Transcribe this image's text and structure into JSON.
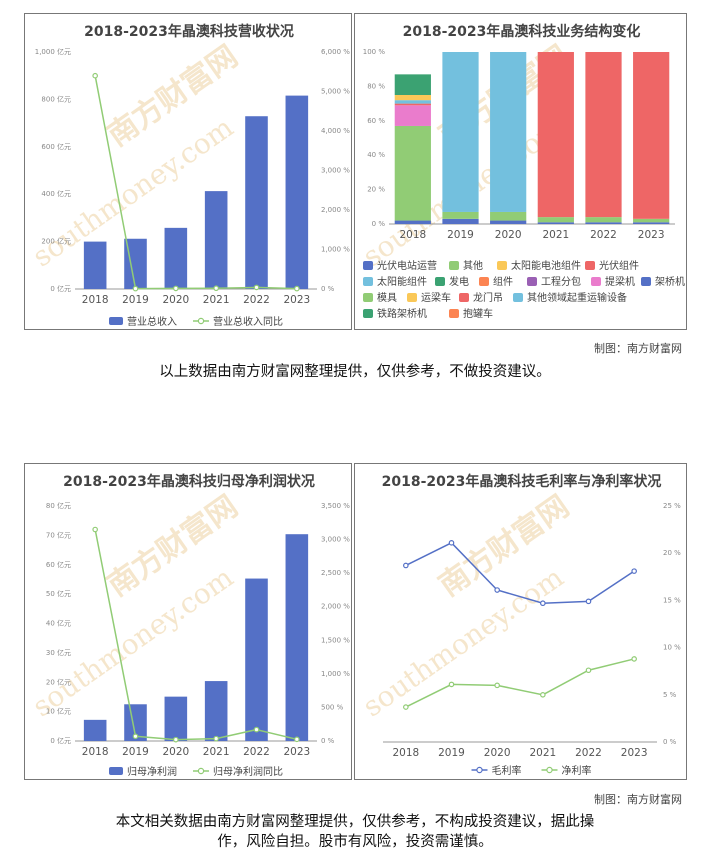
{
  "watermark": {
    "cn": "南方财富网",
    "en": "southmoney.com",
    "color": "#f5e6cc"
  },
  "credits": {
    "top": "制图：南方财富网",
    "bottom": "制图：南方财富网"
  },
  "disclaimers": {
    "top": "以上数据由南方财富网整理提供，仅供参考，不做投资建议。",
    "bottom_line1": "本文相关数据由南方财富网整理提供，仅供参考，不构成投资建议，据此操",
    "bottom_line2": "作，风险自担。股市有风险，投资需谨慎。"
  },
  "chart_data": [
    {
      "type": "bar",
      "title": "2018-2023年晶澳科技营收状况",
      "categories": [
        "2018",
        "2019",
        "2020",
        "2021",
        "2022",
        "2023"
      ],
      "y_ticks": [
        "0 亿元",
        "200 亿元",
        "400 亿元",
        "600 亿元",
        "800 亿元",
        "1,000 亿元"
      ],
      "y2_ticks": [
        "0 %",
        "1,000 %",
        "2,000 %",
        "3,000 %",
        "4,000 %",
        "5,000 %",
        "6,000 %"
      ],
      "ylim": [
        0,
        1000
      ],
      "y2lim": [
        0,
        6000
      ],
      "series": [
        {
          "name": "营业总收入",
          "kind": "bar",
          "axis": "left",
          "color": "#5470c6",
          "values": [
            200,
            212,
            258,
            413,
            729,
            816
          ]
        },
        {
          "name": "营业总收入同比",
          "kind": "line",
          "axis": "right",
          "color": "#91cc75",
          "values": [
            5400,
            10,
            15,
            20,
            40,
            10
          ]
        }
      ]
    },
    {
      "type": "bar",
      "stacked": true,
      "title": "2018-2023年晶澳科技业务结构变化",
      "categories": [
        "2018",
        "2019",
        "2020",
        "2021",
        "2022",
        "2023"
      ],
      "y_ticks": [
        "0 %",
        "20 %",
        "40 %",
        "60 %",
        "80 %",
        "100 %"
      ],
      "ylim": [
        0,
        100
      ],
      "legend": [
        {
          "name": "光伏电站运营",
          "color": "#5470c6"
        },
        {
          "name": "其他",
          "color": "#91cc75"
        },
        {
          "name": "太阳能电池组件",
          "color": "#fac858"
        },
        {
          "name": "光伏组件",
          "color": "#ee6666"
        },
        {
          "name": "太阳能组件",
          "color": "#73c0de"
        },
        {
          "name": "发电",
          "color": "#3ba272"
        },
        {
          "name": "组件",
          "color": "#fc8452"
        },
        {
          "name": "工程分包",
          "color": "#9a60b4"
        },
        {
          "name": "提梁机",
          "color": "#ea7ccc"
        },
        {
          "name": "架桥机",
          "color": "#5470c6"
        },
        {
          "name": "模具",
          "color": "#91cc75"
        },
        {
          "name": "运梁车",
          "color": "#fac858"
        },
        {
          "name": "龙门吊",
          "color": "#ee6666"
        },
        {
          "name": "其他领域起重运输设备",
          "color": "#73c0de"
        },
        {
          "name": "铁路架桥机",
          "color": "#3ba272"
        },
        {
          "name": "抱罐车",
          "color": "#fc8452"
        }
      ],
      "series": [
        {
          "name": "架桥机",
          "color": "#5470c6",
          "values": [
            2,
            0,
            0,
            0,
            0,
            0
          ]
        },
        {
          "name": "光伏电站运营",
          "color": "#5470c6",
          "values": [
            0,
            3,
            2,
            1,
            1,
            1
          ]
        },
        {
          "name": "模具",
          "color": "#91cc75",
          "values": [
            55,
            0,
            0,
            0,
            0,
            0
          ]
        },
        {
          "name": "其他",
          "color": "#91cc75",
          "values": [
            0,
            4,
            5,
            3,
            3,
            2
          ]
        },
        {
          "name": "提梁机",
          "color": "#ea7ccc",
          "values": [
            12,
            0,
            0,
            0,
            0,
            0
          ]
        },
        {
          "name": "龙门吊",
          "color": "#ee6666",
          "values": [
            1,
            0,
            0,
            0,
            0,
            0
          ]
        },
        {
          "name": "其他领域起重运输设备",
          "color": "#73c0de",
          "values": [
            2,
            0,
            0,
            0,
            0,
            0
          ]
        },
        {
          "name": "运梁车",
          "color": "#fac858",
          "values": [
            3,
            0,
            0,
            0,
            0,
            0
          ]
        },
        {
          "name": "铁路架桥机",
          "color": "#3ba272",
          "values": [
            12,
            0,
            0,
            0,
            0,
            0
          ]
        },
        {
          "name": "太阳能组件",
          "color": "#73c0de",
          "values": [
            0,
            93,
            93,
            0,
            0,
            0
          ]
        },
        {
          "name": "光伏组件",
          "color": "#ee6666",
          "values": [
            0,
            0,
            0,
            96,
            96,
            97
          ]
        }
      ]
    },
    {
      "type": "bar",
      "title": "2018-2023年晶澳科技归母净利润状况",
      "categories": [
        "2018",
        "2019",
        "2020",
        "2021",
        "2022",
        "2023"
      ],
      "y_ticks": [
        "0 亿元",
        "10 亿元",
        "20 亿元",
        "30 亿元",
        "40 亿元",
        "50 亿元",
        "60 亿元",
        "70 亿元",
        "80 亿元"
      ],
      "y2_ticks": [
        "0 %",
        "500 %",
        "1,000 %",
        "1,500 %",
        "2,000 %",
        "2,500 %",
        "3,000 %",
        "3,500 %"
      ],
      "ylim": [
        0,
        80
      ],
      "y2lim": [
        0,
        3500
      ],
      "series": [
        {
          "name": "归母净利润",
          "kind": "bar",
          "axis": "left",
          "color": "#5470c6",
          "values": [
            7.2,
            12.5,
            15.1,
            20.4,
            55.3,
            70.4
          ]
        },
        {
          "name": "归母净利润同比",
          "kind": "line",
          "axis": "right",
          "color": "#91cc75",
          "values": [
            3150,
            70,
            20,
            35,
            170,
            25
          ]
        }
      ]
    },
    {
      "type": "line",
      "title": "2018-2023年晶澳科技毛利率与净利率状况",
      "categories": [
        "2018",
        "2019",
        "2020",
        "2021",
        "2022",
        "2023"
      ],
      "y_ticks": [
        "0 %",
        "5 %",
        "10 %",
        "15 %",
        "20 %",
        "25 %"
      ],
      "ylim": [
        0,
        25
      ],
      "series": [
        {
          "name": "毛利率",
          "color": "#5470c6",
          "values": [
            18.7,
            21.1,
            16.1,
            14.7,
            14.9,
            18.1
          ]
        },
        {
          "name": "净利率",
          "color": "#91cc75",
          "values": [
            3.7,
            6.1,
            6.0,
            5.0,
            7.6,
            8.8
          ]
        }
      ]
    }
  ]
}
